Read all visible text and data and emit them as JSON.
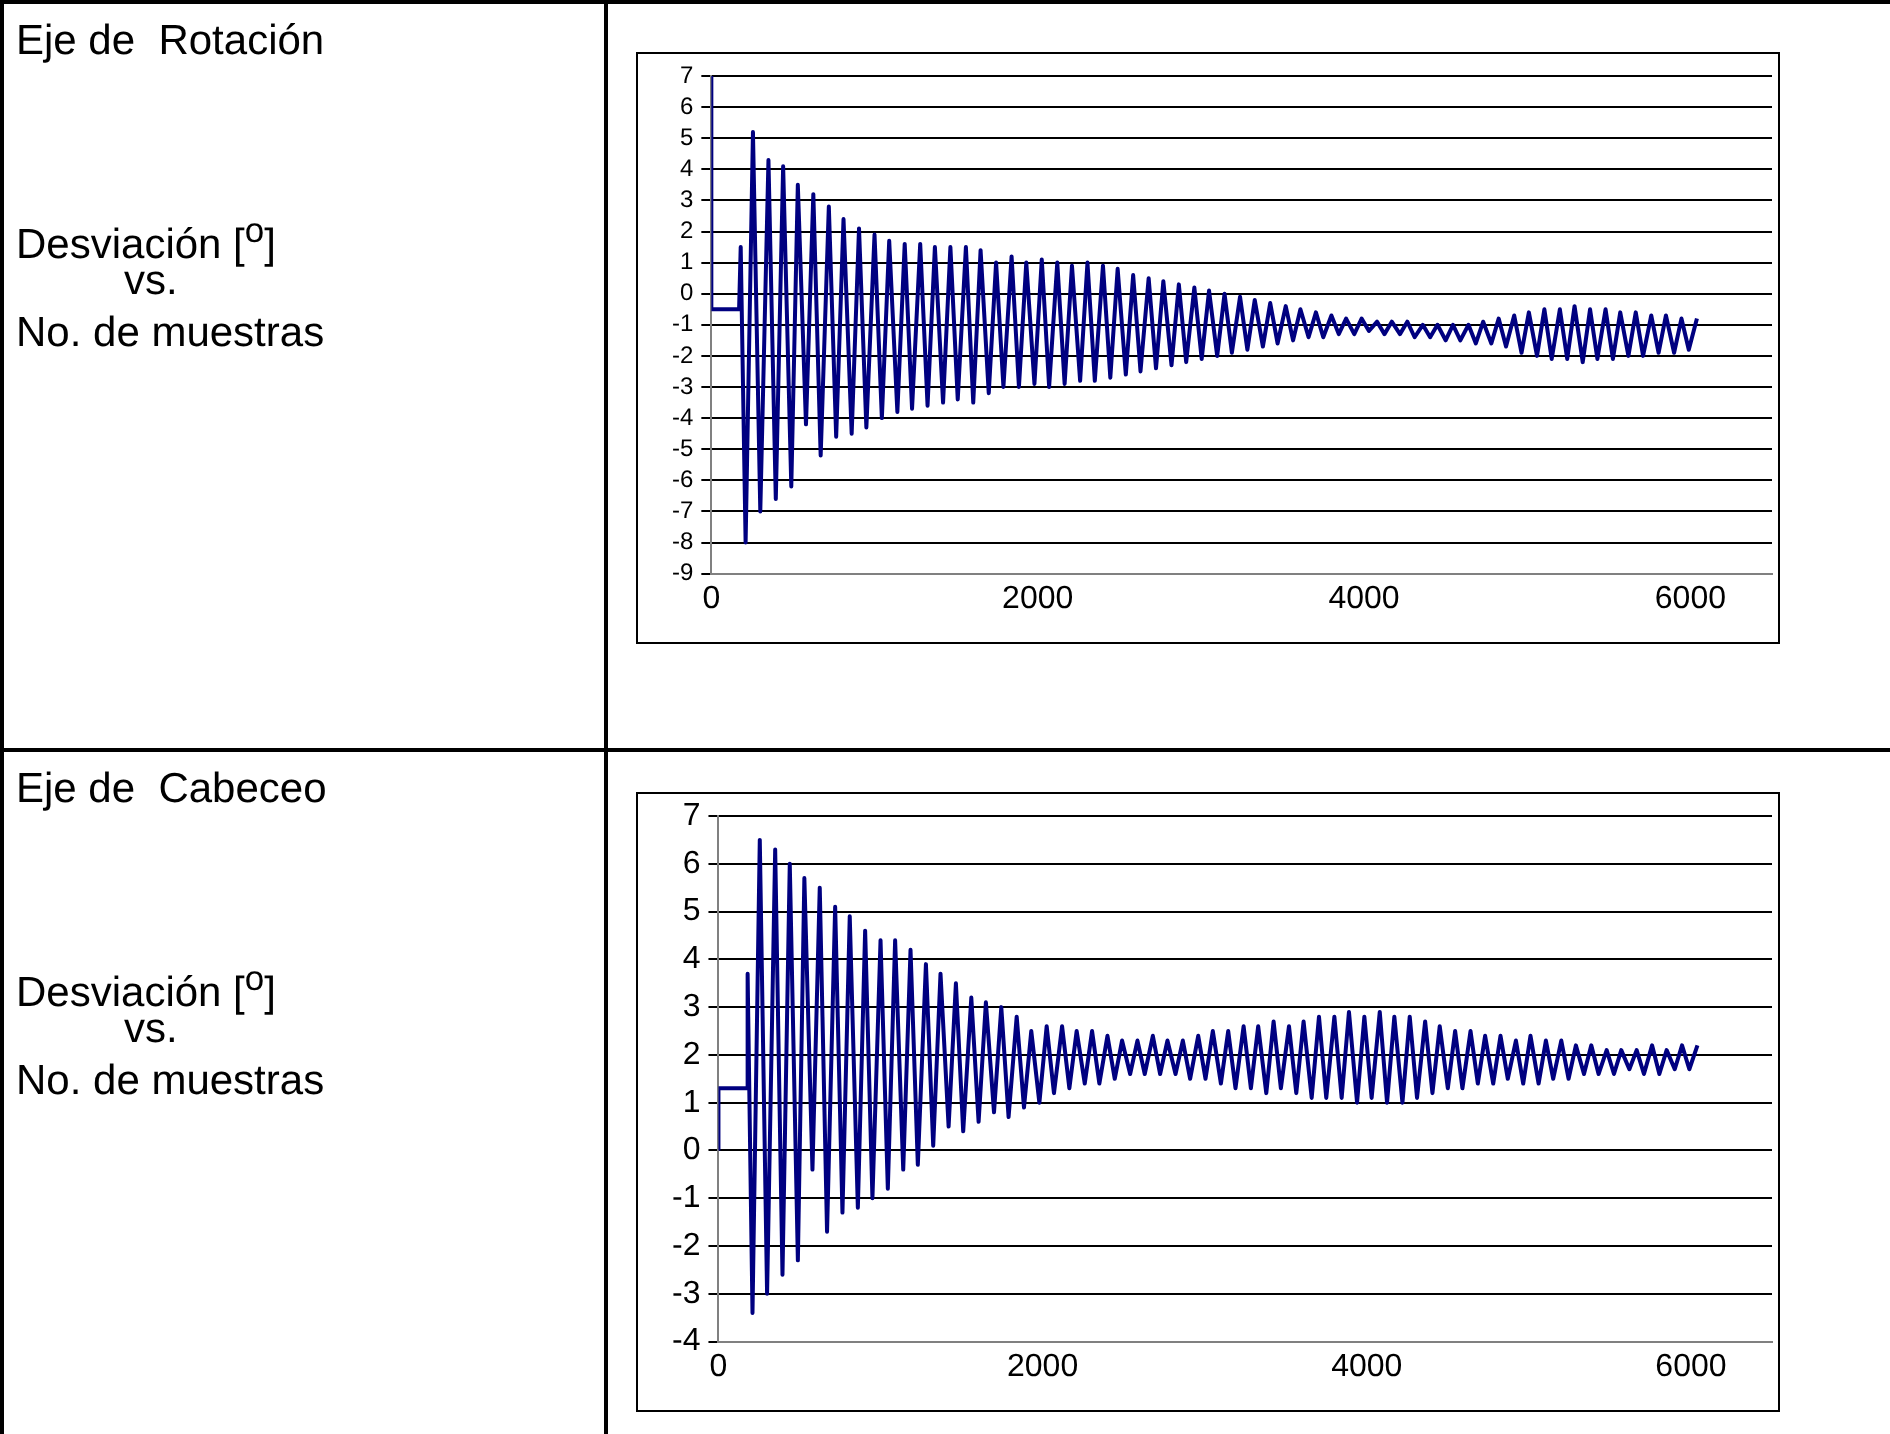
{
  "chart_data": [
    {
      "type": "line",
      "annotations": [
        "Eje de  Rotación",
        "Desviación [$^{o}$]",
        "vs.",
        "No. de muestras"
      ],
      "x": [
        0,
        0,
        170,
        180,
        210,
        255,
        300,
        350,
        395,
        440,
        490,
        530,
        580,
        625,
        670,
        720,
        765,
        810,
        860,
        905,
        950,
        1000,
        1045,
        1090,
        1140,
        1185,
        1230,
        1280,
        1325,
        1370,
        1420,
        1465,
        1510,
        1560,
        1605,
        1650,
        1700,
        1745,
        1790,
        1840,
        1885,
        1930,
        1980,
        2025,
        2070,
        2120,
        2165,
        2210,
        2260,
        2305,
        2350,
        2400,
        2445,
        2490,
        2540,
        2585,
        2630,
        2680,
        2725,
        2770,
        2820,
        2865,
        2910,
        2960,
        3005,
        3050,
        3100,
        3145,
        3190,
        3240,
        3285,
        3330,
        3380,
        3425,
        3470,
        3520,
        3565,
        3610,
        3660,
        3705,
        3750,
        3800,
        3845,
        3890,
        3940,
        3985,
        4030,
        4080,
        4125,
        4170,
        4220,
        4265,
        4310,
        4360,
        4405,
        4450,
        4500,
        4545,
        4590,
        4640,
        4685,
        4730,
        4780,
        4825,
        4870,
        4920,
        4965,
        5010,
        5060,
        5105,
        5150,
        5200,
        5245,
        5290,
        5340,
        5385,
        5430,
        5480,
        5525,
        5570,
        5620,
        5665,
        5710,
        5760,
        5805,
        5850,
        5900,
        5945,
        5990,
        6040
      ],
      "series": [
        {
          "color": "#000080",
          "values": [
            7,
            -0.5,
            -0.5,
            1.5,
            -8,
            5.2,
            -7,
            4.3,
            -6.6,
            4.1,
            -6.2,
            3.5,
            -4.2,
            3.2,
            -5.2,
            2.8,
            -4.6,
            2.4,
            -4.5,
            2.1,
            -4.3,
            1.9,
            -4.0,
            1.7,
            -3.8,
            1.6,
            -3.7,
            1.6,
            -3.6,
            1.5,
            -3.5,
            1.5,
            -3.4,
            1.5,
            -3.5,
            1.4,
            -3.2,
            1.0,
            -3.0,
            1.2,
            -3.0,
            1.0,
            -2.9,
            1.1,
            -3.0,
            1.0,
            -2.9,
            0.9,
            -2.8,
            1.0,
            -2.8,
            0.9,
            -2.7,
            0.8,
            -2.6,
            0.6,
            -2.5,
            0.5,
            -2.4,
            0.4,
            -2.3,
            0.3,
            -2.2,
            0.2,
            -2.1,
            0.1,
            -2.0,
            0,
            -1.9,
            -0.1,
            -1.8,
            -0.2,
            -1.7,
            -0.3,
            -1.6,
            -0.4,
            -1.5,
            -0.5,
            -1.4,
            -0.6,
            -1.4,
            -0.7,
            -1.3,
            -0.8,
            -1.3,
            -0.8,
            -1.2,
            -0.9,
            -1.3,
            -0.9,
            -1.3,
            -0.9,
            -1.4,
            -1.0,
            -1.4,
            -1.0,
            -1.5,
            -1.0,
            -1.5,
            -1.0,
            -1.6,
            -0.9,
            -1.6,
            -0.8,
            -1.7,
            -0.7,
            -1.9,
            -0.6,
            -2.0,
            -0.5,
            -2.1,
            -0.5,
            -2.1,
            -0.4,
            -2.2,
            -0.5,
            -2.1,
            -0.5,
            -2.1,
            -0.6,
            -2.0,
            -0.6,
            -2.0,
            -0.7,
            -1.9,
            -0.7,
            -1.9,
            -0.8,
            -1.8,
            -0.8
          ]
        }
      ],
      "xlim": [
        0,
        6500
      ],
      "xticks": [
        0,
        2000,
        4000,
        6000
      ],
      "ylim": [
        -9,
        7
      ],
      "yticks": [
        -9,
        -8,
        -7,
        -6,
        -5,
        -4,
        -3,
        -2,
        -1,
        0,
        1,
        2,
        3,
        4,
        5,
        6,
        7
      ],
      "grid": "y",
      "legend": false,
      "line_style": "solid"
    },
    {
      "type": "line",
      "annotations": [
        "Eje de  Cabeceo",
        "Desviación [$^{o}$]",
        "vs.",
        "No. de muestras"
      ],
      "x": [
        0,
        0,
        170,
        180,
        210,
        255,
        300,
        350,
        395,
        440,
        490,
        530,
        580,
        625,
        670,
        720,
        765,
        810,
        860,
        905,
        950,
        1000,
        1045,
        1090,
        1140,
        1185,
        1230,
        1280,
        1325,
        1370,
        1420,
        1465,
        1510,
        1560,
        1605,
        1650,
        1700,
        1745,
        1790,
        1840,
        1885,
        1930,
        1980,
        2025,
        2070,
        2120,
        2165,
        2210,
        2260,
        2305,
        2350,
        2400,
        2445,
        2490,
        2540,
        2585,
        2630,
        2680,
        2725,
        2770,
        2820,
        2865,
        2910,
        2960,
        3005,
        3050,
        3100,
        3145,
        3190,
        3240,
        3285,
        3330,
        3380,
        3425,
        3470,
        3520,
        3565,
        3610,
        3660,
        3705,
        3750,
        3800,
        3845,
        3890,
        3940,
        3985,
        4030,
        4080,
        4125,
        4170,
        4220,
        4265,
        4310,
        4360,
        4405,
        4450,
        4500,
        4545,
        4590,
        4640,
        4685,
        4730,
        4780,
        4825,
        4870,
        4920,
        4965,
        5010,
        5060,
        5105,
        5150,
        5200,
        5245,
        5290,
        5340,
        5385,
        5430,
        5480,
        5525,
        5570,
        5620,
        5665,
        5710,
        5760,
        5805,
        5850,
        5900,
        5945,
        5990,
        6040
      ],
      "series": [
        {
          "color": "#000080",
          "values": [
            0,
            1.3,
            1.3,
            3.7,
            -3.4,
            6.5,
            -3.0,
            6.3,
            -2.6,
            6.0,
            -2.3,
            5.7,
            -0.4,
            5.5,
            -1.7,
            5.1,
            -1.3,
            4.9,
            -1.2,
            4.6,
            -1.0,
            4.4,
            -0.8,
            4.4,
            -0.4,
            4.2,
            -0.3,
            3.9,
            0.1,
            3.7,
            0.5,
            3.5,
            0.4,
            3.2,
            0.6,
            3.1,
            0.8,
            3.0,
            0.7,
            2.8,
            0.9,
            2.5,
            1.0,
            2.6,
            1.2,
            2.6,
            1.3,
            2.5,
            1.4,
            2.5,
            1.4,
            2.4,
            1.5,
            2.3,
            1.6,
            2.3,
            1.6,
            2.4,
            1.6,
            2.3,
            1.6,
            2.3,
            1.5,
            2.4,
            1.5,
            2.5,
            1.4,
            2.5,
            1.3,
            2.6,
            1.3,
            2.6,
            1.2,
            2.7,
            1.3,
            2.6,
            1.2,
            2.7,
            1.1,
            2.8,
            1.1,
            2.8,
            1.1,
            2.9,
            1.0,
            2.8,
            1.1,
            2.9,
            1.0,
            2.8,
            1.0,
            2.8,
            1.1,
            2.7,
            1.2,
            2.6,
            1.3,
            2.5,
            1.3,
            2.5,
            1.4,
            2.4,
            1.4,
            2.4,
            1.5,
            2.3,
            1.4,
            2.4,
            1.4,
            2.3,
            1.5,
            2.3,
            1.5,
            2.2,
            1.6,
            2.2,
            1.6,
            2.1,
            1.6,
            2.1,
            1.7,
            2.1,
            1.6,
            2.2,
            1.6,
            2.1,
            1.7,
            2.2,
            1.7,
            2.2
          ]
        }
      ],
      "xlim": [
        0,
        6500
      ],
      "xticks": [
        0,
        2000,
        4000,
        6000
      ],
      "ylim": [
        -4,
        7
      ],
      "yticks": [
        -4,
        -3,
        -2,
        -1,
        0,
        1,
        2,
        3,
        4,
        5,
        6,
        7
      ],
      "grid": "y",
      "legend": false,
      "line_style": "solid"
    }
  ]
}
